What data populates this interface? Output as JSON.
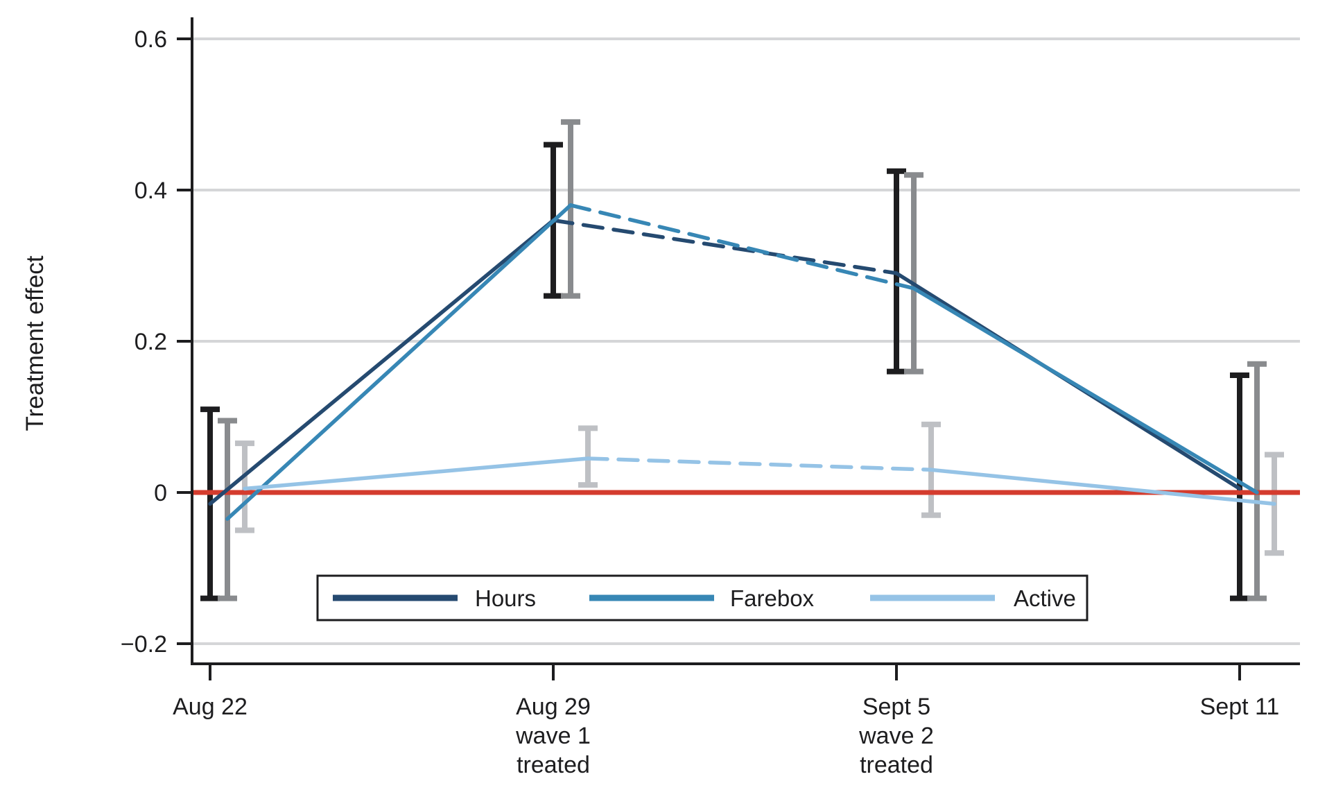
{
  "chart_data": {
    "type": "line",
    "title": "",
    "xlabel": "",
    "ylabel": "Treatment effect",
    "ylim": [
      -0.25,
      0.63
    ],
    "yticks": [
      0.6,
      0.4,
      0.2,
      0,
      -0.2
    ],
    "ytick_labels": [
      "0.6",
      "0.4",
      "0.2",
      "0",
      "−0.2"
    ],
    "gridline_values": [
      0.6,
      0.4,
      0.2,
      -0.2
    ],
    "grid": "horizontal-only",
    "zero_line": {
      "value": 0,
      "color": "#d43c2e"
    },
    "categories": [
      "Aug 22",
      "Aug 29 wave 1 treated",
      "Sept 5 wave 2 treated",
      "Sept 11"
    ],
    "xtick_lines": [
      [
        "Aug 22"
      ],
      [
        "Aug 29",
        "wave 1",
        "treated"
      ],
      [
        "Sept 5",
        "wave 2",
        "treated"
      ],
      [
        "Sept 11"
      ]
    ],
    "line_style_by_segment": [
      "solid",
      "dashed",
      "solid"
    ],
    "series": [
      {
        "name": "Hours",
        "color": "#254a70",
        "ci_color": "#1d1d1f",
        "x_offset": 0,
        "values": [
          -0.015,
          0.36,
          0.29,
          0.005
        ],
        "ci_low": [
          -0.14,
          0.26,
          0.16,
          -0.14
        ],
        "ci_high": [
          0.11,
          0.46,
          0.425,
          0.155
        ]
      },
      {
        "name": "Farebox",
        "color": "#3787b5",
        "ci_color": "#898b8e",
        "x_offset": 25,
        "values": [
          -0.035,
          0.38,
          0.27,
          0.0
        ],
        "ci_low": [
          -0.14,
          0.26,
          0.16,
          -0.14
        ],
        "ci_high": [
          0.095,
          0.49,
          0.42,
          0.17
        ]
      },
      {
        "name": "Active",
        "color": "#95c3e6",
        "ci_color": "#bec0c4",
        "x_offset": 50,
        "values": [
          0.005,
          0.045,
          0.03,
          -0.015
        ],
        "ci_low": [
          -0.05,
          0.01,
          -0.03,
          -0.08
        ],
        "ci_high": [
          0.065,
          0.085,
          0.09,
          0.05
        ]
      }
    ],
    "legend": {
      "position": "bottom-center",
      "entries": [
        "Hours",
        "Farebox",
        "Active"
      ]
    },
    "colors": {
      "ink": "#1d1d1f",
      "gridline": "#d5d6d8",
      "background": "#ffffff"
    }
  }
}
